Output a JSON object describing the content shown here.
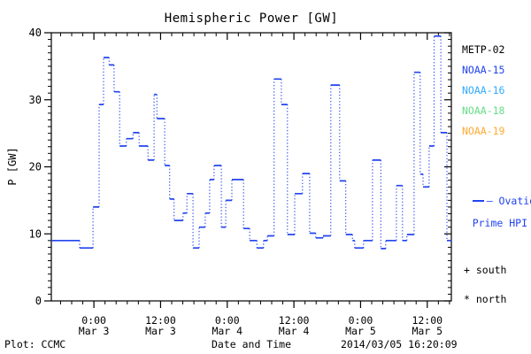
{
  "title": "Hemispheric Power [GW]",
  "axes": {
    "y_label": "P [GW]",
    "x_label": "Date and Time",
    "y_range": [
      0,
      40
    ],
    "y_ticks": [
      0,
      10,
      20,
      30,
      40
    ],
    "y_minor_step": 1,
    "x_range_hours": 72,
    "x_major_ticks_hours": [
      7.664,
      19.664,
      31.664,
      43.664,
      55.664,
      67.664
    ],
    "x_tick_labels": [
      {
        "time": "0:00",
        "date": "Mar 3"
      },
      {
        "time": "12:00",
        "date": "Mar 3"
      },
      {
        "time": "0:00",
        "date": "Mar 4"
      },
      {
        "time": "12:00",
        "date": "Mar 4"
      },
      {
        "time": "0:00",
        "date": "Mar 5"
      },
      {
        "time": "12:00",
        "date": "Mar 5"
      }
    ],
    "x_minor_start_hours": 1.664,
    "x_minor_step_hours": 2
  },
  "legend": {
    "satellites": [
      {
        "label": "METP-02",
        "color": "#000000"
      },
      {
        "label": "NOAA-15",
        "color": "#2244ee"
      },
      {
        "label": "NOAA-16",
        "color": "#33aaff"
      },
      {
        "label": "NOAA-18",
        "color": "#66dd88"
      },
      {
        "label": "NOAA-19",
        "color": "#ffaa33"
      }
    ],
    "line_label_1": "– Ovation",
    "line_label_2": "Prime HPI",
    "south_label": "+ south",
    "north_label": "* north"
  },
  "footer": {
    "plot_credit": "Plot: CCMC",
    "timestamp": "2014/03/05 16:20:09"
  },
  "chart_data": {
    "type": "line",
    "line_style": "stepped, solid horizontals with dotted vertical connectors",
    "line_color": "#2244ee",
    "title": "Hemispheric Power [GW]",
    "xlabel": "Date and Time",
    "ylabel": "P [GW]",
    "ylim": [
      0,
      40
    ],
    "x_span": "72 hours ending 2014/03/05 16:20:09 (starts ~Mar 2 16:20)",
    "grid": false,
    "legend_position": "right, outside plot",
    "steps_hours_gw": [
      [
        0.0,
        5.1,
        9.0
      ],
      [
        5.1,
        7.5,
        7.9
      ],
      [
        7.5,
        8.6,
        14.0
      ],
      [
        8.6,
        9.4,
        29.3
      ],
      [
        9.4,
        10.4,
        36.3
      ],
      [
        10.4,
        11.3,
        35.2
      ],
      [
        11.3,
        12.3,
        31.2
      ],
      [
        12.3,
        13.5,
        23.1
      ],
      [
        13.5,
        14.7,
        24.2
      ],
      [
        14.7,
        15.8,
        25.1
      ],
      [
        15.8,
        17.4,
        23.1
      ],
      [
        17.4,
        18.5,
        21.0
      ],
      [
        18.5,
        19.0,
        30.8
      ],
      [
        19.0,
        20.4,
        27.2
      ],
      [
        20.4,
        21.3,
        20.2
      ],
      [
        21.3,
        22.1,
        15.2
      ],
      [
        22.1,
        23.7,
        12.0
      ],
      [
        23.7,
        24.4,
        13.1
      ],
      [
        24.4,
        25.5,
        16.0
      ],
      [
        25.5,
        26.6,
        7.9
      ],
      [
        26.6,
        27.7,
        11.0
      ],
      [
        27.7,
        28.5,
        13.1
      ],
      [
        28.5,
        29.3,
        18.1
      ],
      [
        29.3,
        30.6,
        20.2
      ],
      [
        30.6,
        31.4,
        11.0
      ],
      [
        31.4,
        32.5,
        15.0
      ],
      [
        32.5,
        34.6,
        18.1
      ],
      [
        34.6,
        35.7,
        10.8
      ],
      [
        35.7,
        37.0,
        9.0
      ],
      [
        37.0,
        38.2,
        7.9
      ],
      [
        38.2,
        38.9,
        9.0
      ],
      [
        38.9,
        40.1,
        9.7
      ],
      [
        40.1,
        41.4,
        33.1
      ],
      [
        41.4,
        42.5,
        29.3
      ],
      [
        42.5,
        43.8,
        9.9
      ],
      [
        43.8,
        45.2,
        16.0
      ],
      [
        45.2,
        46.5,
        19.0
      ],
      [
        46.5,
        47.6,
        10.1
      ],
      [
        47.6,
        48.9,
        9.4
      ],
      [
        48.9,
        50.3,
        9.7
      ],
      [
        50.3,
        51.9,
        32.2
      ],
      [
        51.9,
        53.0,
        17.9
      ],
      [
        53.0,
        54.2,
        9.9
      ],
      [
        54.2,
        54.6,
        9.0
      ],
      [
        54.6,
        56.2,
        7.9
      ],
      [
        56.2,
        57.8,
        9.0
      ],
      [
        57.8,
        59.3,
        21.0
      ],
      [
        59.3,
        60.2,
        7.8
      ],
      [
        60.2,
        62.1,
        9.0
      ],
      [
        62.1,
        63.2,
        17.2
      ],
      [
        63.2,
        64.0,
        9.0
      ],
      [
        64.0,
        65.3,
        9.9
      ],
      [
        65.3,
        66.4,
        34.1
      ],
      [
        66.4,
        66.9,
        18.9
      ],
      [
        66.9,
        68.0,
        17.0
      ],
      [
        68.0,
        68.9,
        23.1
      ],
      [
        68.9,
        70.1,
        39.5
      ],
      [
        70.1,
        71.2,
        25.1
      ],
      [
        71.2,
        72.0,
        9.0
      ]
    ]
  }
}
